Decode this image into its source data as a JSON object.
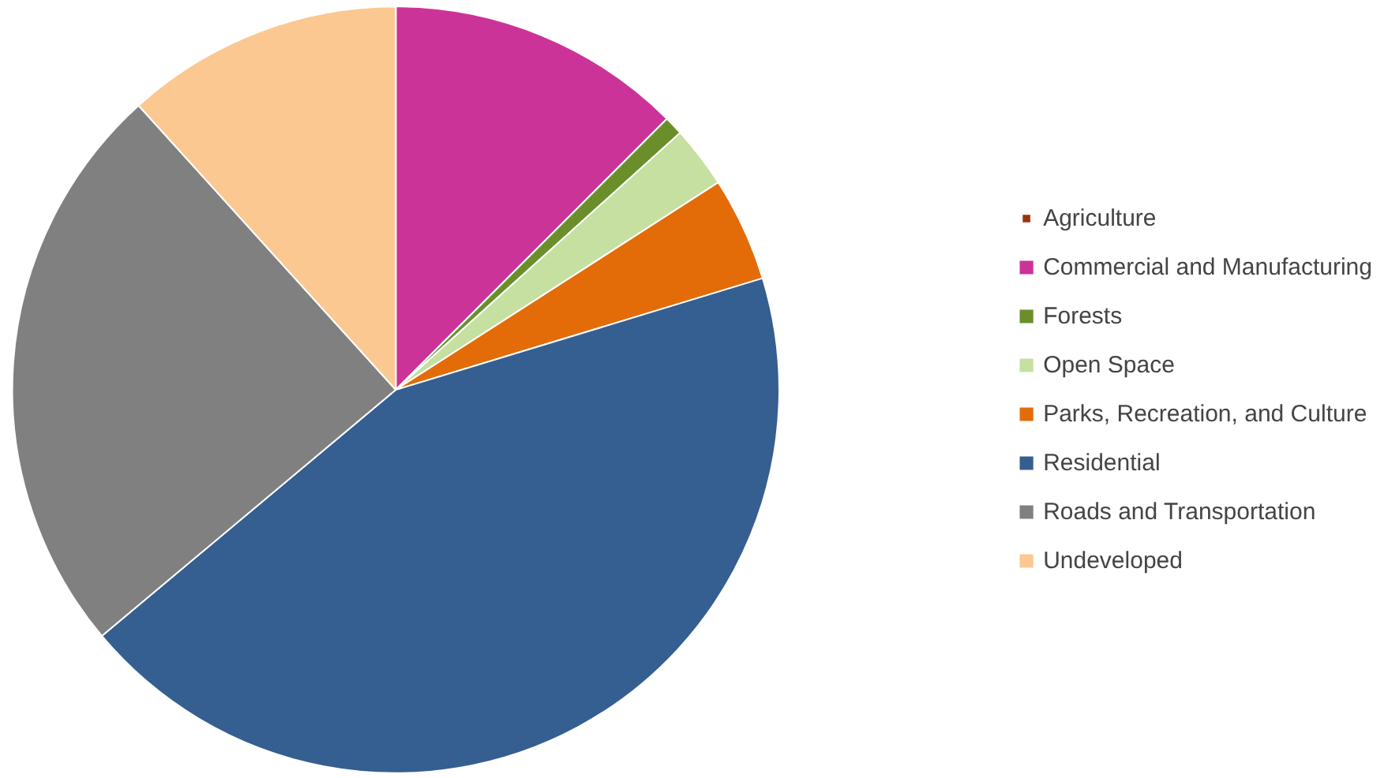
{
  "chart_data": {
    "type": "pie",
    "categories": [
      "Agriculture",
      "Commercial and Manufacturing",
      "Forests",
      "Open Space",
      "Parks, Recreation, and Culture",
      "Residential",
      "Roads and Transportation",
      "Undeveloped"
    ],
    "values": [
      null,
      12.5,
      0.8,
      2.6,
      4.4,
      43.6,
      24.4,
      11.7
    ],
    "colors": [
      "#a0320a",
      "#cc3399",
      "#6a8f2a",
      "#c5e0a0",
      "#e36c09",
      "#355e91",
      "#808080",
      "#fbc891"
    ],
    "legend": "right"
  }
}
